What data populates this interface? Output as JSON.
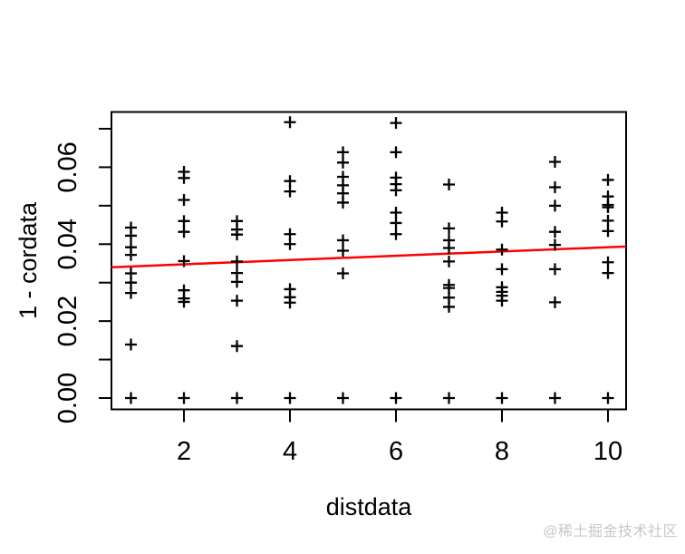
{
  "watermark": {
    "text": "@稀土掘金技术社区"
  },
  "chart_data": {
    "type": "scatter",
    "title": "",
    "xlabel": "distdata",
    "ylabel": "1 - cordata",
    "marker": "+",
    "marker_color": "#000000",
    "background": "#ffffff",
    "box_color": "#000000",
    "grid": false,
    "legend": "none",
    "xlim": [
      0.632,
      10.342
    ],
    "ylim": [
      -0.00295,
      0.07436
    ],
    "x_ticks": [
      {
        "v": 2,
        "label": "2"
      },
      {
        "v": 4,
        "label": "4"
      },
      {
        "v": 6,
        "label": "6"
      },
      {
        "v": 8,
        "label": "8"
      },
      {
        "v": 10,
        "label": "10"
      }
    ],
    "y_ticks": [
      {
        "v": 0.0,
        "label": "0.00"
      },
      {
        "v": 0.01,
        "label": ""
      },
      {
        "v": 0.02,
        "label": "0.02"
      },
      {
        "v": 0.03,
        "label": ""
      },
      {
        "v": 0.04,
        "label": "0.04"
      },
      {
        "v": 0.05,
        "label": ""
      },
      {
        "v": 0.06,
        "label": "0.06"
      },
      {
        "v": 0.07,
        "label": ""
      }
    ],
    "series": [
      {
        "name": "1 - cordata vs distdata",
        "groups": [
          {
            "x": 1,
            "ys": [
              0.0443,
              0.0422,
              0.0392,
              0.0372,
              0.0324,
              0.03,
              0.0273,
              0.0139,
              0.0
            ]
          },
          {
            "x": 2,
            "ys": [
              0.0588,
              0.0572,
              0.0515,
              0.046,
              0.0432,
              0.0356,
              0.028,
              0.0259,
              0.025,
              0.0
            ]
          },
          {
            "x": 3,
            "ys": [
              0.046,
              0.0438,
              0.0425,
              0.0355,
              0.0325,
              0.0302,
              0.0253,
              0.0135,
              0.0
            ]
          },
          {
            "x": 4,
            "ys": [
              0.0717,
              0.0564,
              0.0537,
              0.0426,
              0.04,
              0.0283,
              0.0262,
              0.0248,
              0.0
            ]
          },
          {
            "x": 5,
            "ys": [
              0.0639,
              0.0612,
              0.0575,
              0.0553,
              0.0532,
              0.0508,
              0.041,
              0.0383,
              0.0324,
              0.0
            ]
          },
          {
            "x": 6,
            "ys": [
              0.0715,
              0.0639,
              0.0573,
              0.0556,
              0.054,
              0.0482,
              0.0455,
              0.0426,
              0.0
            ]
          },
          {
            "x": 7,
            "ys": [
              0.0555,
              0.0441,
              0.041,
              0.039,
              0.0355,
              0.0294,
              0.0286,
              0.0261,
              0.0237,
              0.0
            ]
          },
          {
            "x": 8,
            "ys": [
              0.0482,
              0.0459,
              0.0386,
              0.0335,
              0.0288,
              0.0276,
              0.0266,
              0.0253,
              0.0
            ]
          },
          {
            "x": 9,
            "ys": [
              0.0614,
              0.0548,
              0.05,
              0.0432,
              0.0398,
              0.0335,
              0.0249,
              0.0
            ]
          },
          {
            "x": 10,
            "ys": [
              0.0567,
              0.0524,
              0.0502,
              0.0496,
              0.0461,
              0.0434,
              0.0353,
              0.0325,
              0.0
            ]
          }
        ]
      }
    ],
    "fit_line": {
      "color": "#ff0000",
      "x1": 0.632,
      "y1": 0.034,
      "x2": 10.342,
      "y2": 0.0394
    }
  }
}
